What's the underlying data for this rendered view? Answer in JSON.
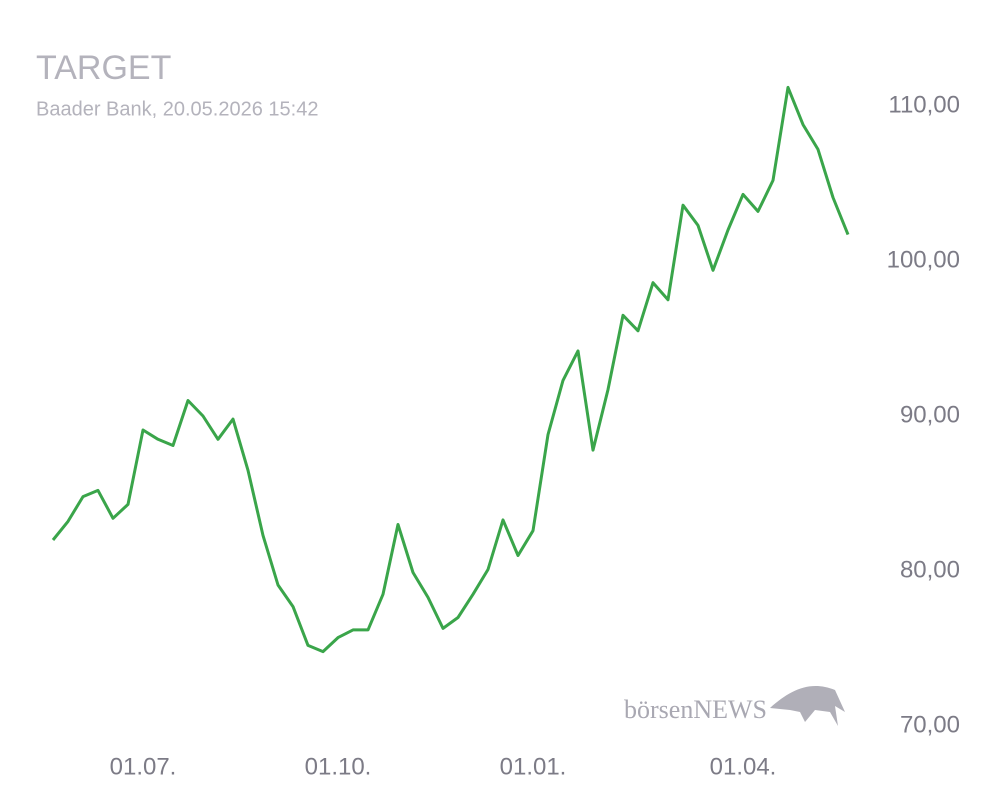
{
  "chart_data": {
    "type": "line",
    "title": "TARGET",
    "subtitle": "Baader Bank, 20.05.2026 15:42",
    "watermark": "börsenNEWS",
    "categories": [
      null,
      null,
      null,
      null,
      null,
      null,
      "01.07.",
      null,
      null,
      null,
      null,
      null,
      null,
      null,
      null,
      null,
      null,
      null,
      null,
      "01.10.",
      null,
      null,
      null,
      null,
      null,
      null,
      null,
      null,
      null,
      null,
      null,
      null,
      "01.01.",
      null,
      null,
      null,
      null,
      null,
      null,
      null,
      null,
      null,
      null,
      null,
      null,
      null,
      "01.04.",
      null,
      null,
      null,
      null,
      null,
      null,
      null
    ],
    "series": [
      {
        "name": "TARGET",
        "color": "#3aa54a",
        "values": [
          82.0,
          83.2,
          84.8,
          85.2,
          83.4,
          84.3,
          89.1,
          88.5,
          88.1,
          91.0,
          90.0,
          88.5,
          89.8,
          86.5,
          82.3,
          79.1,
          77.7,
          75.2,
          74.8,
          75.7,
          76.2,
          76.2,
          78.5,
          83.0,
          79.9,
          78.3,
          76.3,
          77.0,
          78.5,
          80.1,
          83.3,
          81.0,
          82.6,
          88.8,
          92.3,
          94.2,
          87.8,
          91.7,
          96.5,
          95.5,
          98.6,
          97.5,
          103.6,
          102.3,
          99.4,
          102.0,
          104.3,
          103.2,
          105.2,
          111.2,
          108.8,
          107.2,
          104.1,
          101.7
        ]
      }
    ],
    "ylim": [
      68,
      112
    ],
    "yticks": [
      {
        "value": 70,
        "label": "70,00"
      },
      {
        "value": 80,
        "label": "80,00"
      },
      {
        "value": 90,
        "label": "90,00"
      },
      {
        "value": 100,
        "label": "100,00"
      },
      {
        "value": 110,
        "label": "110,00"
      }
    ]
  }
}
